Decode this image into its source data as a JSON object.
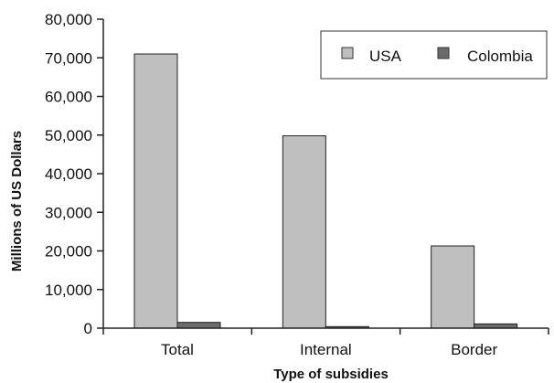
{
  "chart_data": {
    "type": "bar",
    "categories": [
      "Total",
      "Internal",
      "Border"
    ],
    "series": [
      {
        "name": "USA",
        "values": [
          71000,
          49800,
          21300
        ],
        "color": "#bfbfbf"
      },
      {
        "name": "Colombia",
        "values": [
          1500,
          400,
          1100
        ],
        "color": "#6b6b6b"
      }
    ],
    "xlabel": "Type of subsidies",
    "ylabel": "Millions of US Dollars",
    "ylim": [
      0,
      80000
    ],
    "yticks": [
      0,
      10000,
      20000,
      30000,
      40000,
      50000,
      60000,
      70000,
      80000
    ],
    "ytick_labels": [
      "0",
      "10,000",
      "20,000",
      "30,000",
      "40,000",
      "50,000",
      "60,000",
      "70,000",
      "80,000"
    ],
    "grid": false,
    "legend_position": "top-right"
  }
}
